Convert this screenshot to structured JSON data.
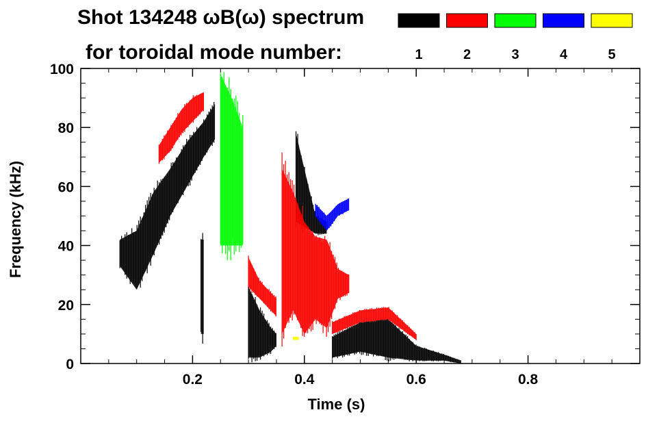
{
  "chart_data": {
    "type": "heatmap",
    "title": "Shot 134248 ωB(ω) spectrum",
    "subtitle": "for toroidal mode number:",
    "xlabel": "Time (s)",
    "ylabel": "Frequency (kHz)",
    "xlim": [
      0.0,
      1.0
    ],
    "ylim": [
      0,
      100
    ],
    "x_ticks": [
      0.2,
      0.4,
      0.6,
      0.8
    ],
    "x_tick_labels": [
      "0.2",
      "0.4",
      "0.6",
      "0.8"
    ],
    "y_ticks": [
      0,
      20,
      40,
      60,
      80,
      100
    ],
    "y_tick_labels": [
      "0",
      "20",
      "40",
      "60",
      "80",
      "100"
    ],
    "grid": false,
    "legend_position": "top-right",
    "legend": [
      {
        "label": "1",
        "color": "#000000"
      },
      {
        "label": "2",
        "color": "#ff0000"
      },
      {
        "label": "3",
        "color": "#00ff00"
      },
      {
        "label": "4",
        "color": "#0000ff"
      },
      {
        "label": "5",
        "color": "#ffff00"
      }
    ],
    "series": [
      {
        "mode": "1",
        "color": "#000000",
        "regions": [
          {
            "t": [
              0.07,
              0.1,
              0.13,
              0.16,
              0.19,
              0.22,
              0.24
            ],
            "f_low": [
              33,
              25,
              37,
              50,
              60,
              70,
              76
            ],
            "f_high": [
              42,
              45,
              58,
              66,
              75,
              82,
              88
            ]
          },
          {
            "t": [
              0.215,
              0.22
            ],
            "f_low": [
              10,
              10
            ],
            "f_high": [
              42,
              42
            ]
          },
          {
            "t": [
              0.3,
              0.32,
              0.34,
              0.35
            ],
            "f_low": [
              2,
              2,
              4,
              6
            ],
            "f_high": [
              26,
              18,
              12,
              10
            ]
          },
          {
            "t": [
              0.385,
              0.42,
              0.44
            ],
            "f_low": [
              48,
              44,
              44
            ],
            "f_high": [
              78,
              50,
              48
            ]
          },
          {
            "t": [
              0.45,
              0.5,
              0.55,
              0.6,
              0.65,
              0.68
            ],
            "f_low": [
              2,
              4,
              2,
              1,
              1,
              0
            ],
            "f_high": [
              9,
              14,
              15,
              6,
              3,
              1
            ]
          }
        ]
      },
      {
        "mode": "2",
        "color": "#ff0000",
        "regions": [
          {
            "t": [
              0.14,
              0.16,
              0.18,
              0.2,
              0.22
            ],
            "f_low": [
              68,
              72,
              78,
              82,
              86
            ],
            "f_high": [
              74,
              80,
              86,
              90,
              92
            ]
          },
          {
            "t": [
              0.3,
              0.32,
              0.34,
              0.35
            ],
            "f_low": [
              26,
              22,
              18,
              16
            ],
            "f_high": [
              36,
              28,
              24,
              22
            ]
          },
          {
            "t": [
              0.36,
              0.38,
              0.4,
              0.42,
              0.44,
              0.46,
              0.48
            ],
            "f_low": [
              10,
              18,
              10,
              15,
              12,
              22,
              24
            ],
            "f_high": [
              66,
              58,
              48,
              43,
              42,
              32,
              30
            ]
          },
          {
            "t": [
              0.45,
              0.5,
              0.55,
              0.6
            ],
            "f_low": [
              10,
              14,
              15,
              8
            ],
            "f_high": [
              14,
              18,
              19,
              10
            ]
          }
        ]
      },
      {
        "mode": "3",
        "color": "#00ff00",
        "regions": [
          {
            "t": [
              0.25,
              0.27,
              0.29
            ],
            "f_low": [
              40,
              40,
              40
            ],
            "f_high": [
              98,
              90,
              80
            ]
          }
        ]
      },
      {
        "mode": "4",
        "color": "#0000ff",
        "regions": [
          {
            "t": [
              0.42,
              0.44,
              0.46,
              0.48
            ],
            "f_low": [
              50,
              45,
              50,
              52
            ],
            "f_high": [
              54,
              50,
              54,
              56
            ]
          }
        ]
      },
      {
        "mode": "5",
        "color": "#ffff00",
        "regions": [
          {
            "t": [
              0.38,
              0.39
            ],
            "f_low": [
              8,
              8
            ],
            "f_high": [
              9,
              9
            ]
          }
        ]
      }
    ]
  }
}
